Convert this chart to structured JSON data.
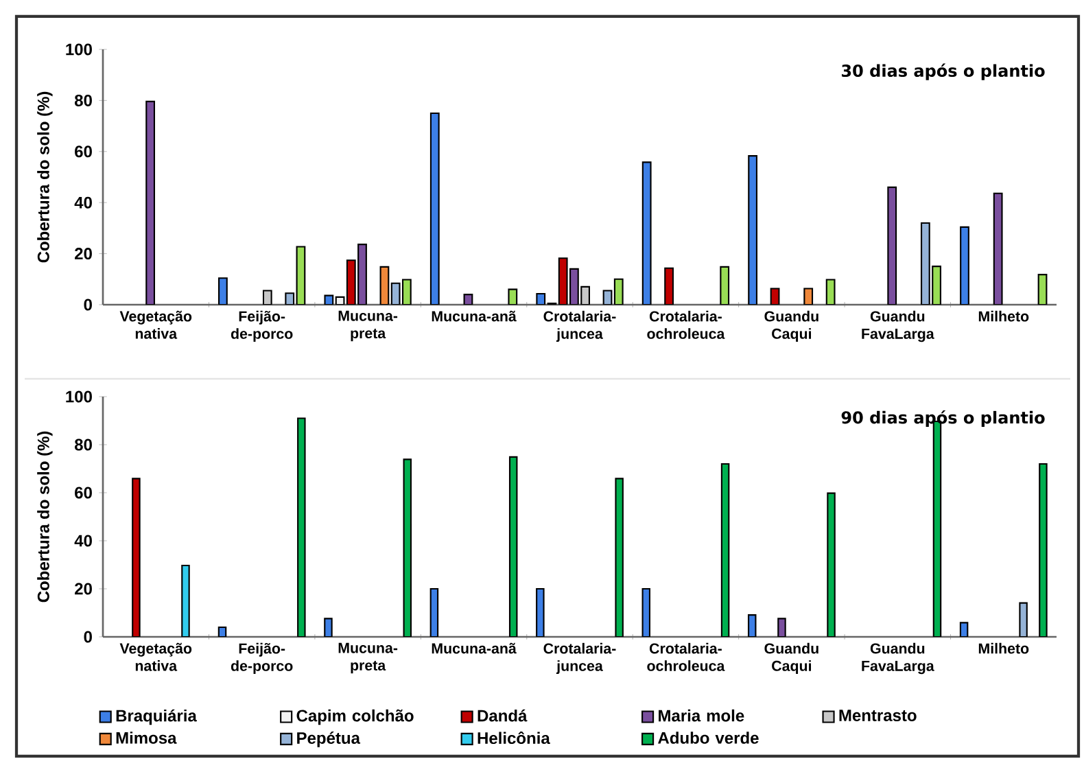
{
  "chart_data": [
    {
      "type": "bar",
      "title": "30 dias após o plantio",
      "ylabel": "Cobertura do solo (%)",
      "categories": [
        "Vegetação nativa",
        "Feijão-de-porco",
        "Mucuna-preta",
        "Mucuna-anã",
        "Crotalaria-juncea",
        "Crotalaria-ochroleuca",
        "Guandu Caqui",
        "Guandu FavaLarga",
        "Milheto"
      ],
      "ylim": [
        0,
        100
      ],
      "yticks": [
        0,
        20,
        40,
        60,
        80,
        100
      ],
      "series": [
        {
          "color": "#3d7fe6",
          "values": [
            null,
            10.4,
            3.6,
            75,
            4.3,
            55.8,
            58.3,
            null,
            30.4
          ]
        },
        {
          "color": "#f2f2f2",
          "values": [
            null,
            null,
            3,
            null,
            0.5,
            null,
            null,
            null,
            null
          ]
        },
        {
          "color": "#c00000",
          "values": [
            null,
            null,
            17.4,
            null,
            18.2,
            14.3,
            6.3,
            null,
            null
          ]
        },
        {
          "color": "#7a4f9e",
          "values": [
            79.6,
            null,
            23.6,
            4,
            14,
            null,
            null,
            46,
            43.6
          ]
        },
        {
          "color": "#c8c8c8",
          "values": [
            null,
            5.5,
            null,
            null,
            7,
            null,
            null,
            null,
            null
          ]
        },
        {
          "color": "#f0883a",
          "values": [
            null,
            null,
            14.8,
            null,
            null,
            null,
            6.3,
            null,
            null
          ]
        },
        {
          "color": "#95b3d7",
          "values": [
            null,
            4.5,
            8.4,
            null,
            5.5,
            null,
            null,
            32,
            null
          ]
        },
        {
          "color": "#99dd55",
          "values": [
            null,
            22.7,
            9.8,
            6,
            10,
            14.8,
            9.8,
            15,
            11.8
          ]
        }
      ]
    },
    {
      "type": "bar",
      "title": "90 dias após o plantio",
      "ylabel": "Cobertura do solo (%)",
      "categories": [
        "Vegetação nativa",
        "Feijão-de-porco",
        "Mucuna-preta",
        "Mucuna-anã",
        "Crotalaria-juncea",
        "Crotalaria-ochroleuca",
        "Guandu Caqui",
        "Guandu FavaLarga",
        "Milheto"
      ],
      "ylim": [
        0,
        100
      ],
      "yticks": [
        0,
        20,
        40,
        60,
        80,
        100
      ],
      "legend": "bottom",
      "series": [
        {
          "name": "Braquiária",
          "color": "#3d7fe6",
          "values": [
            null,
            4,
            7.6,
            20,
            20,
            20,
            9.1,
            null,
            5.9
          ]
        },
        {
          "name": "Capim colchão",
          "color": "#f2f2f2",
          "values": [
            null,
            null,
            null,
            null,
            null,
            null,
            null,
            null,
            null
          ]
        },
        {
          "name": "Dandá",
          "color": "#c00000",
          "values": [
            65.9,
            null,
            null,
            null,
            null,
            null,
            null,
            null,
            null
          ]
        },
        {
          "name": "Maria mole",
          "color": "#7a4f9e",
          "values": [
            null,
            null,
            null,
            null,
            null,
            null,
            7.6,
            null,
            null
          ]
        },
        {
          "name": "Mentrasto",
          "color": "#c8c8c8",
          "values": [
            null,
            null,
            null,
            null,
            null,
            null,
            null,
            null,
            null
          ]
        },
        {
          "name": "Mimosa",
          "color": "#f0883a",
          "values": [
            null,
            null,
            null,
            null,
            null,
            null,
            null,
            null,
            null
          ]
        },
        {
          "name": "Pepétua",
          "color": "#95b3d7",
          "values": [
            null,
            null,
            null,
            null,
            null,
            null,
            null,
            null,
            14.1
          ]
        },
        {
          "name": "Helicônia",
          "color": "#33ccee",
          "values": [
            29.7,
            null,
            null,
            null,
            null,
            null,
            null,
            null,
            null
          ]
        },
        {
          "name": "Adubo verde",
          "color": "#00b050",
          "values": [
            null,
            91,
            73.9,
            74.9,
            65.9,
            72,
            59.8,
            89.7,
            72
          ]
        }
      ]
    }
  ]
}
